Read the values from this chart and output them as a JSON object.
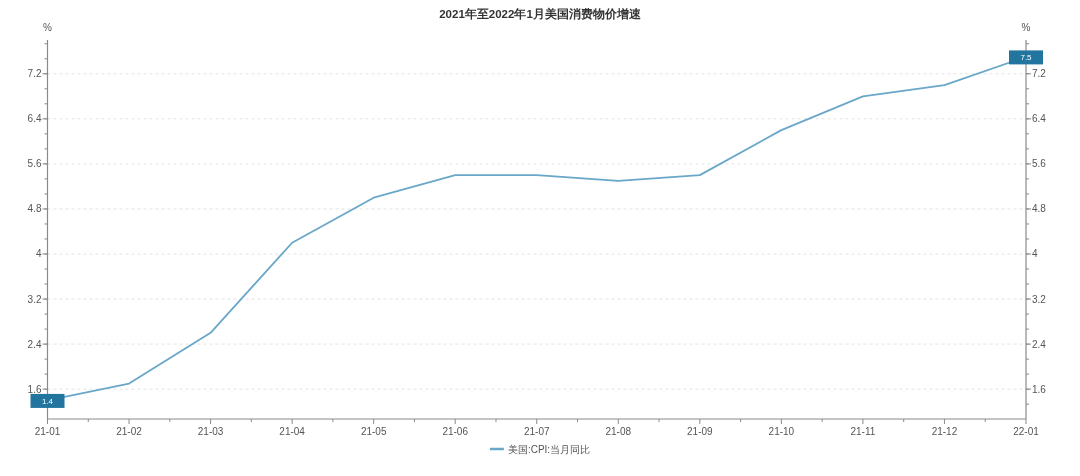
{
  "chart_data": {
    "type": "line",
    "title": "2021年至2022年1月美国消费物价增速",
    "ylabel": "%",
    "y2label": "%",
    "categories": [
      "21-01",
      "21-02",
      "21-03",
      "21-04",
      "21-05",
      "21-06",
      "21-07",
      "21-08",
      "21-09",
      "21-10",
      "21-11",
      "21-12",
      "22-01"
    ],
    "series": [
      {
        "name": "美国:CPI:当月同比",
        "color": "#69a7c9",
        "values": [
          1.4,
          1.7,
          2.6,
          4.2,
          5.0,
          5.4,
          5.4,
          5.3,
          5.4,
          6.2,
          6.8,
          7.0,
          7.5
        ],
        "value_labels": [
          "1.4",
          null,
          null,
          null,
          null,
          null,
          null,
          null,
          null,
          null,
          null,
          null,
          "7.5"
        ]
      }
    ],
    "ylim": [
      1.07,
      7.8
    ],
    "yticks": [
      1.6,
      2.4,
      3.2,
      4,
      4.8,
      5.6,
      6.4,
      7.2
    ],
    "y2lim": [
      1.07,
      7.8
    ],
    "y2ticks": [
      1.6,
      2.4,
      3.2,
      4,
      4.8,
      5.6,
      6.4,
      7.2
    ],
    "grid": "y",
    "legend": "bottom",
    "line_style": "solid"
  }
}
